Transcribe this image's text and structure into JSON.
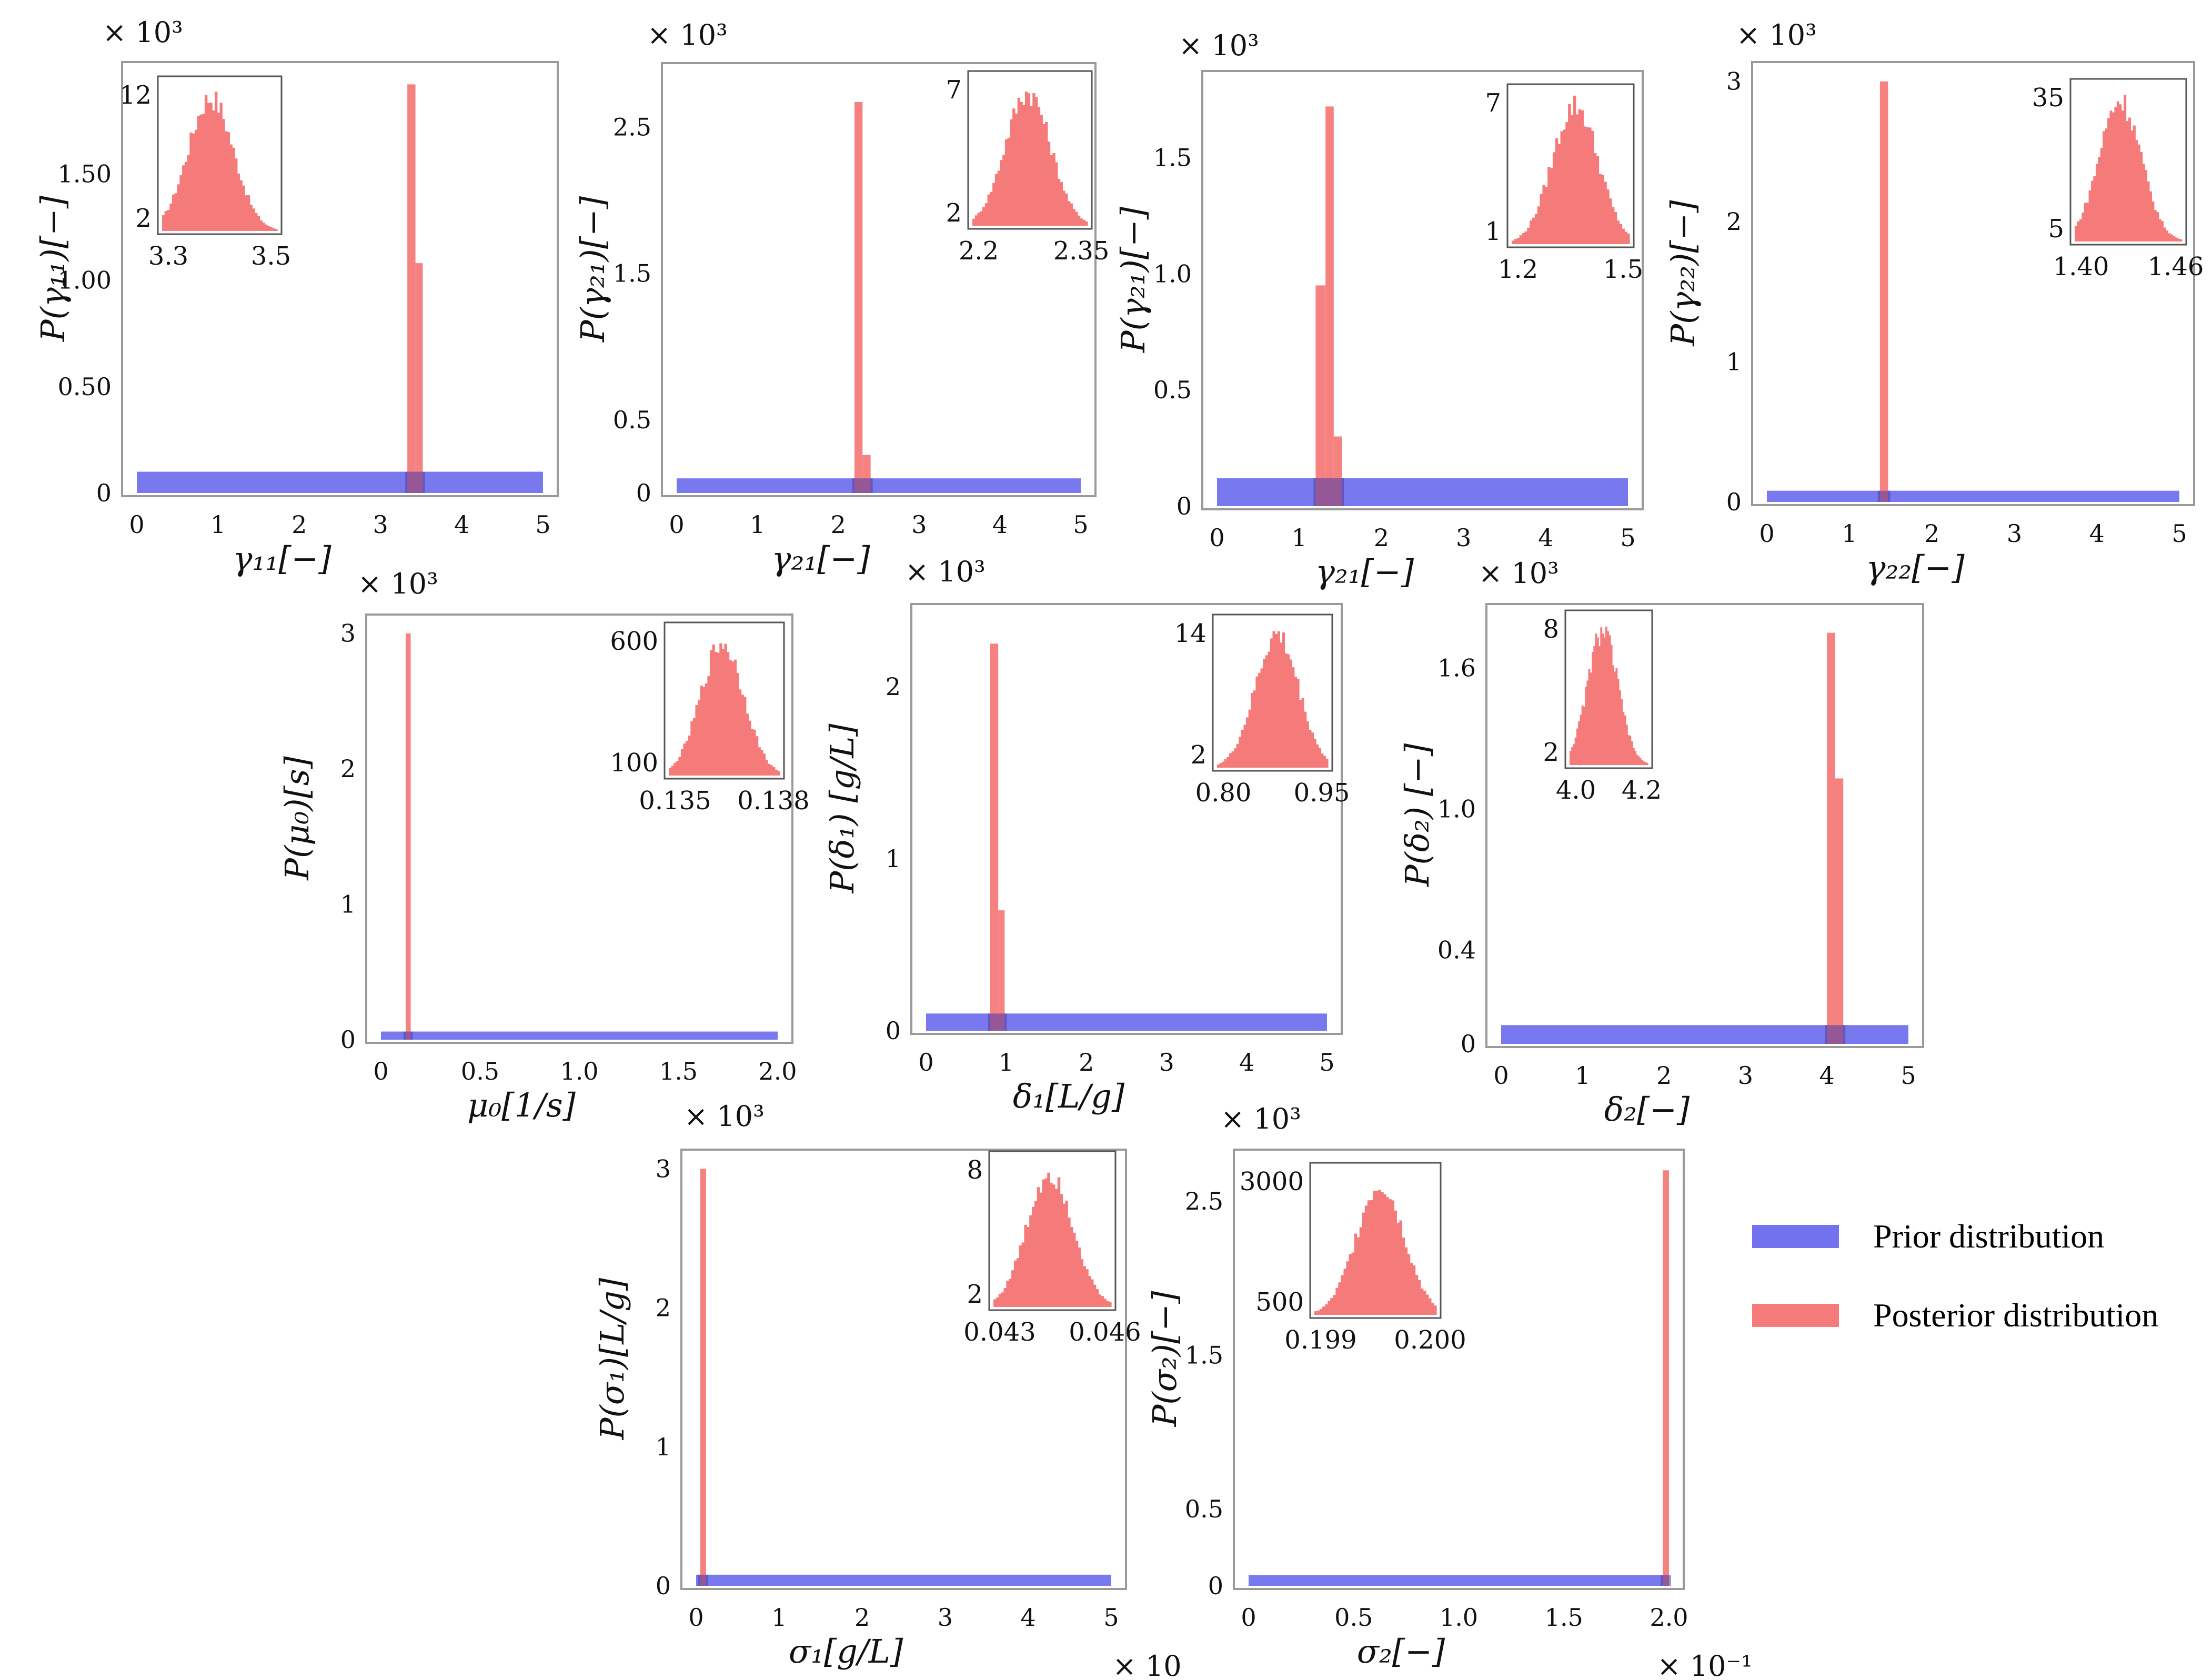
{
  "colors": {
    "prior": "#7272ee",
    "posterior": "#f57a7a",
    "frame": "#9a9a9a"
  },
  "legend": {
    "prior_label": "Prior distribution",
    "posterior_label": "Posterior distribution"
  },
  "chart_data": [
    {
      "id": "g11",
      "type": "bar",
      "ylabel": "P(γ₁₁)[−]",
      "xlabel": "γ₁₁[−]",
      "multiplier": "× 10³",
      "xlim": [
        0,
        5
      ],
      "ylim": [
        0,
        2.0
      ],
      "xticks": [
        {
          "v": 0,
          "l": "0"
        },
        {
          "v": 1,
          "l": "1"
        },
        {
          "v": 2,
          "l": "2"
        },
        {
          "v": 3,
          "l": "3"
        },
        {
          "v": 4,
          "l": "4"
        },
        {
          "v": 5,
          "l": "5"
        }
      ],
      "yticks": [
        {
          "v": 0,
          "l": "0"
        },
        {
          "v": 0.5,
          "l": "0.50"
        },
        {
          "v": 1.0,
          "l": "1.00"
        },
        {
          "v": 1.5,
          "l": "1.50"
        }
      ],
      "prior": {
        "x0": 0,
        "x1": 5,
        "y": 0.1
      },
      "posterior": [
        {
          "x0": 3.33,
          "x1": 3.43,
          "y": 1.92
        },
        {
          "x0": 3.43,
          "x1": 3.52,
          "y": 1.08
        }
      ],
      "inset": {
        "xticks": [
          "3.3",
          "3.5"
        ],
        "yticks": [
          "2",
          "12"
        ]
      }
    },
    {
      "id": "g21a",
      "type": "bar",
      "ylabel": "P(γ₂₁)[−]",
      "xlabel": "γ₂₁[−]",
      "multiplier": "× 10³",
      "xlim": [
        0,
        5
      ],
      "ylim": [
        0,
        2.9
      ],
      "xticks": [
        {
          "v": 0,
          "l": "0"
        },
        {
          "v": 1,
          "l": "1"
        },
        {
          "v": 2,
          "l": "2"
        },
        {
          "v": 3,
          "l": "3"
        },
        {
          "v": 4,
          "l": "4"
        },
        {
          "v": 5,
          "l": "5"
        }
      ],
      "yticks": [
        {
          "v": 0,
          "l": "0"
        },
        {
          "v": 0.5,
          "l": "0.5"
        },
        {
          "v": 1.5,
          "l": "1.5"
        },
        {
          "v": 2.5,
          "l": "2.5"
        }
      ],
      "prior": {
        "x0": 0,
        "x1": 5,
        "y": 0.1
      },
      "posterior": [
        {
          "x0": 2.2,
          "x1": 2.3,
          "y": 2.67
        },
        {
          "x0": 2.3,
          "x1": 2.4,
          "y": 0.26
        }
      ],
      "inset": {
        "xticks": [
          "2.2",
          "2.35"
        ],
        "yticks": [
          "2",
          "7"
        ]
      }
    },
    {
      "id": "g21b",
      "type": "bar",
      "ylabel": "P(γ₂₁)[−]",
      "xlabel": "γ₂₁[−]",
      "multiplier": "× 10³",
      "xlim": [
        0,
        5
      ],
      "ylim": [
        0,
        1.85
      ],
      "xticks": [
        {
          "v": 0,
          "l": "0"
        },
        {
          "v": 1,
          "l": "1"
        },
        {
          "v": 2,
          "l": "2"
        },
        {
          "v": 3,
          "l": "3"
        },
        {
          "v": 4,
          "l": "4"
        },
        {
          "v": 5,
          "l": "5"
        }
      ],
      "yticks": [
        {
          "v": 0,
          "l": "0"
        },
        {
          "v": 0.5,
          "l": "0.5"
        },
        {
          "v": 1.0,
          "l": "1.0"
        },
        {
          "v": 1.5,
          "l": "1.5"
        }
      ],
      "prior": {
        "x0": 0,
        "x1": 5,
        "y": 0.12
      },
      "posterior": [
        {
          "x0": 1.2,
          "x1": 1.32,
          "y": 0.95
        },
        {
          "x0": 1.32,
          "x1": 1.42,
          "y": 1.72
        },
        {
          "x0": 1.42,
          "x1": 1.52,
          "y": 0.3
        }
      ],
      "inset": {
        "xticks": [
          "1.2",
          "1.5"
        ],
        "yticks": [
          "1",
          "7"
        ]
      }
    },
    {
      "id": "g22",
      "type": "bar",
      "ylabel": "P(γ₂₂)[−]",
      "xlabel": "γ₂₂[−]",
      "multiplier": "× 10³",
      "xlim": [
        0,
        5
      ],
      "ylim": [
        0,
        3.1
      ],
      "xticks": [
        {
          "v": 0,
          "l": "0"
        },
        {
          "v": 1,
          "l": "1"
        },
        {
          "v": 2,
          "l": "2"
        },
        {
          "v": 3,
          "l": "3"
        },
        {
          "v": 4,
          "l": "4"
        },
        {
          "v": 5,
          "l": "5"
        }
      ],
      "yticks": [
        {
          "v": 0,
          "l": "0"
        },
        {
          "v": 1,
          "l": "1"
        },
        {
          "v": 2,
          "l": "2"
        },
        {
          "v": 3,
          "l": "3"
        }
      ],
      "prior": {
        "x0": 0,
        "x1": 5,
        "y": 0.08
      },
      "posterior": [
        {
          "x0": 1.37,
          "x1": 1.47,
          "y": 3.0
        }
      ],
      "inset": {
        "xticks": [
          "1.40",
          "1.46"
        ],
        "yticks": [
          "5",
          "35"
        ]
      }
    },
    {
      "id": "mu0",
      "type": "bar",
      "ylabel": "P(μ₀)[s]",
      "xlabel": "μ₀[1/s]",
      "multiplier": "× 10³",
      "xlim": [
        0,
        2
      ],
      "ylim": [
        0,
        3.1
      ],
      "xticks": [
        {
          "v": 0,
          "l": "0"
        },
        {
          "v": 0.5,
          "l": "0.5"
        },
        {
          "v": 1.0,
          "l": "1.0"
        },
        {
          "v": 1.5,
          "l": "1.5"
        },
        {
          "v": 2.0,
          "l": "2.0"
        }
      ],
      "yticks": [
        {
          "v": 0,
          "l": "0"
        },
        {
          "v": 1,
          "l": "1"
        },
        {
          "v": 2,
          "l": "2"
        },
        {
          "v": 3,
          "l": "3"
        }
      ],
      "prior": {
        "x0": 0,
        "x1": 2,
        "y": 0.06
      },
      "posterior": [
        {
          "x0": 0.125,
          "x1": 0.15,
          "y": 3.0
        }
      ],
      "inset": {
        "xticks": [
          "0.135",
          "0.138"
        ],
        "yticks": [
          "100",
          "600"
        ]
      }
    },
    {
      "id": "d1",
      "type": "bar",
      "ylabel": "P(δ₁) [g/L]",
      "xlabel": "δ₁[L/g]",
      "multiplier": "× 10³",
      "xlim": [
        0,
        5
      ],
      "ylim": [
        0,
        2.45
      ],
      "xticks": [
        {
          "v": 0,
          "l": "0"
        },
        {
          "v": 1,
          "l": "1"
        },
        {
          "v": 2,
          "l": "2"
        },
        {
          "v": 3,
          "l": "3"
        },
        {
          "v": 4,
          "l": "4"
        },
        {
          "v": 5,
          "l": "5"
        }
      ],
      "yticks": [
        {
          "v": 0,
          "l": "0"
        },
        {
          "v": 1,
          "l": "1"
        },
        {
          "v": 2,
          "l": "2"
        }
      ],
      "prior": {
        "x0": 0,
        "x1": 5,
        "y": 0.1
      },
      "posterior": [
        {
          "x0": 0.8,
          "x1": 0.9,
          "y": 2.25
        },
        {
          "x0": 0.9,
          "x1": 0.98,
          "y": 0.7
        }
      ],
      "inset": {
        "xticks": [
          "0.80",
          "0.95"
        ],
        "yticks": [
          "2",
          "14"
        ]
      }
    },
    {
      "id": "d2",
      "type": "bar",
      "ylabel": "P(δ₂) [−]",
      "xlabel": "δ₂[−]",
      "multiplier": "× 10³",
      "xlim": [
        0,
        5
      ],
      "ylim": [
        0,
        1.85
      ],
      "xticks": [
        {
          "v": 0,
          "l": "0"
        },
        {
          "v": 1,
          "l": "1"
        },
        {
          "v": 2,
          "l": "2"
        },
        {
          "v": 3,
          "l": "3"
        },
        {
          "v": 4,
          "l": "4"
        },
        {
          "v": 5,
          "l": "5"
        }
      ],
      "yticks": [
        {
          "v": 0,
          "l": "0"
        },
        {
          "v": 0.4,
          "l": "0.4"
        },
        {
          "v": 1.0,
          "l": "1.0"
        },
        {
          "v": 1.6,
          "l": "1.6"
        }
      ],
      "prior": {
        "x0": 0,
        "x1": 5,
        "y": 0.08
      },
      "posterior": [
        {
          "x0": 4.0,
          "x1": 4.1,
          "y": 1.75
        },
        {
          "x0": 4.1,
          "x1": 4.2,
          "y": 1.13
        }
      ],
      "inset": {
        "xticks": [
          "4.0",
          "4.2"
        ],
        "yticks": [
          "2",
          "8"
        ]
      }
    },
    {
      "id": "s1",
      "type": "bar",
      "ylabel": "P(σ₁)[L/g]",
      "xlabel": "σ₁[g/L]",
      "multiplier": "× 10³",
      "xmultiplier": "× 10",
      "xlim": [
        0,
        5
      ],
      "ylim": [
        0,
        3.1
      ],
      "xticks": [
        {
          "v": 0,
          "l": "0"
        },
        {
          "v": 1,
          "l": "1"
        },
        {
          "v": 2,
          "l": "2"
        },
        {
          "v": 3,
          "l": "3"
        },
        {
          "v": 4,
          "l": "4"
        },
        {
          "v": 5,
          "l": "5"
        }
      ],
      "yticks": [
        {
          "v": 0,
          "l": "0"
        },
        {
          "v": 1,
          "l": "1"
        },
        {
          "v": 2,
          "l": "2"
        },
        {
          "v": 3,
          "l": "3"
        }
      ],
      "prior": {
        "x0": 0,
        "x1": 5,
        "y": 0.08
      },
      "posterior": [
        {
          "x0": 0.05,
          "x1": 0.12,
          "y": 3.0
        }
      ],
      "inset": {
        "xticks": [
          "0.043",
          "0.046"
        ],
        "yticks": [
          "2",
          "8"
        ]
      }
    },
    {
      "id": "s2",
      "type": "bar",
      "ylabel": "P(σ₂)[−]",
      "xlabel": "σ₂[−]",
      "multiplier": "× 10³",
      "xmultiplier": "× 10⁻¹",
      "xlim": [
        0,
        2.0
      ],
      "ylim": [
        0,
        2.8
      ],
      "xticks": [
        {
          "v": 0,
          "l": "0"
        },
        {
          "v": 0.5,
          "l": "0.5"
        },
        {
          "v": 1.0,
          "l": "1.0"
        },
        {
          "v": 1.5,
          "l": "1.5"
        },
        {
          "v": 2.0,
          "l": "2.0"
        }
      ],
      "yticks": [
        {
          "v": 0,
          "l": "0"
        },
        {
          "v": 0.5,
          "l": "0.5"
        },
        {
          "v": 1.5,
          "l": "1.5"
        },
        {
          "v": 2.5,
          "l": "2.5"
        }
      ],
      "prior": {
        "x0": 0,
        "x1": 2.0,
        "y": 0.07
      },
      "posterior": [
        {
          "x0": 1.97,
          "x1": 2.0,
          "y": 2.7
        }
      ],
      "inset": {
        "xticks": [
          "0.199",
          "0.200"
        ],
        "yticks": [
          "500",
          "3000"
        ]
      }
    }
  ]
}
